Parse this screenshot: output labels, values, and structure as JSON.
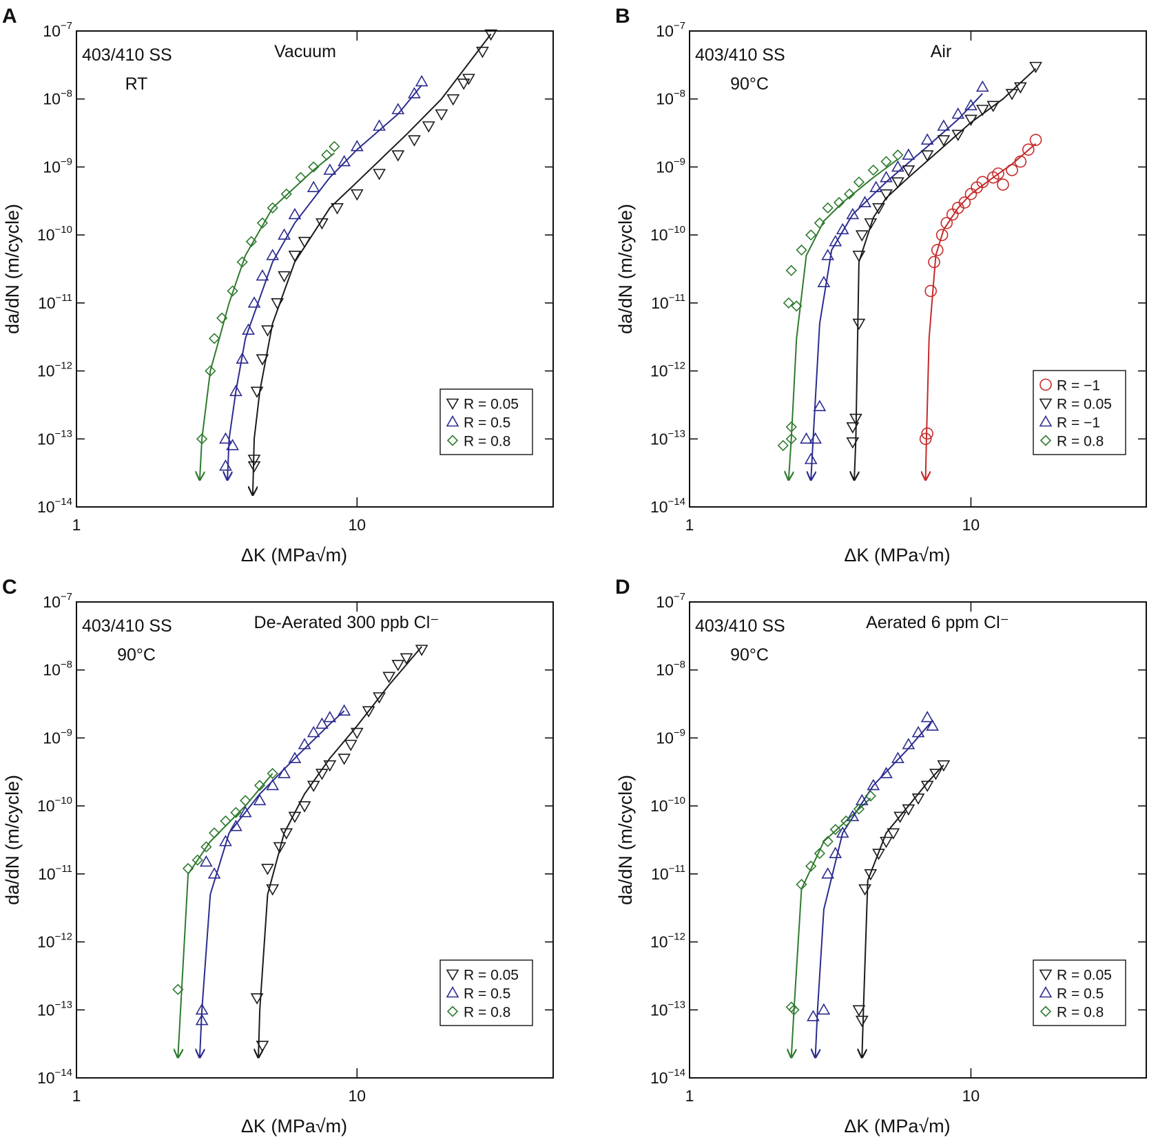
{
  "chart_data": [
    {
      "type": "scatter",
      "label": "A",
      "title": "Vacuum",
      "annotations": [
        "403/410 SS",
        "RT"
      ],
      "xlabel": "ΔK (MPa√m)",
      "ylabel": "da/dN (m/cycle)",
      "xscale": "log",
      "yscale": "log",
      "xlim": [
        1,
        50
      ],
      "xticks": [
        1,
        10
      ],
      "ylim": [
        1e-14,
        1e-07
      ],
      "yticks": [
        {
          "value": 1e-14,
          "label": "10−14"
        },
        {
          "value": 1e-13,
          "label": "10−13"
        },
        {
          "value": 1e-12,
          "label": "10−12"
        },
        {
          "value": 1e-11,
          "label": "10−11"
        },
        {
          "value": 1e-10,
          "label": "10−10"
        },
        {
          "value": 1e-09,
          "label": "10−9"
        },
        {
          "value": 1e-08,
          "label": "10−8"
        },
        {
          "value": 1e-07,
          "label": "10−7"
        }
      ],
      "legend": "lower right",
      "series": [
        {
          "name": "R = 0.05",
          "color": "#1a1a1a",
          "marker": "triangle-down",
          "x": [
            4.3,
            4.3,
            4.4,
            4.6,
            4.8,
            5.2,
            5.5,
            6,
            6.5,
            7.5,
            8.5,
            10,
            12,
            14,
            16,
            18,
            20,
            22,
            24,
            25,
            28,
            30
          ],
          "values": [
            4e-14,
            5e-14,
            5e-13,
            1.5e-12,
            4e-12,
            1e-11,
            2.5e-11,
            5e-11,
            8e-11,
            1.5e-10,
            2.5e-10,
            4e-10,
            8e-10,
            1.5e-09,
            2.5e-09,
            4e-09,
            6e-09,
            1e-08,
            1.7e-08,
            2e-08,
            5e-08,
            9e-08
          ]
        },
        {
          "name": "R = 0.5",
          "color": "#2b2b8f",
          "marker": "triangle-up",
          "x": [
            3.4,
            3.4,
            3.6,
            3.7,
            3.9,
            4.1,
            4.3,
            4.6,
            5,
            5.5,
            6,
            7,
            8,
            9,
            10,
            12,
            14,
            16,
            17
          ],
          "values": [
            1e-13,
            4e-14,
            8e-14,
            5e-13,
            1.5e-12,
            4e-12,
            1e-11,
            2.5e-11,
            5e-11,
            1e-10,
            2e-10,
            5e-10,
            9e-10,
            1.2e-09,
            2e-09,
            4e-09,
            7e-09,
            1.2e-08,
            1.8e-08
          ]
        },
        {
          "name": "R = 0.8",
          "color": "#2e7a2e",
          "marker": "diamond",
          "x": [
            2.8,
            3.0,
            3.1,
            3.3,
            3.6,
            3.9,
            4.2,
            4.6,
            5,
            5.6,
            6.3,
            7,
            7.8,
            8.3
          ],
          "values": [
            1e-13,
            1e-12,
            3e-12,
            6e-12,
            1.5e-11,
            4e-11,
            8e-11,
            1.5e-10,
            2.5e-10,
            4e-10,
            7e-10,
            1e-09,
            1.5e-09,
            2e-09
          ]
        }
      ],
      "fits": [
        {
          "color": "#1a1a1a",
          "x": [
            4.25,
            4.3,
            4.5,
            5,
            6,
            8,
            10,
            15,
            20,
            30
          ],
          "values": [
            1.5e-14,
            1e-13,
            5e-13,
            5e-12,
            4e-11,
            2.5e-10,
            6e-10,
            3e-09,
            1e-08,
            9e-08
          ]
        },
        {
          "color": "#2b2b8f",
          "x": [
            3.45,
            3.5,
            3.7,
            4,
            5,
            6,
            8,
            10,
            14,
            17
          ],
          "values": [
            2.5e-14,
            1e-13,
            5e-13,
            3e-12,
            4e-11,
            1.5e-10,
            7e-10,
            1.8e-09,
            6e-09,
            1.6e-08
          ]
        },
        {
          "color": "#2e7a2e",
          "x": [
            2.75,
            2.8,
            3,
            3.5,
            4,
            5,
            6,
            7,
            8.3
          ],
          "values": [
            2.5e-14,
            1e-13,
            1e-12,
            1e-11,
            5e-11,
            2.5e-10,
            5e-10,
            9e-10,
            1.6e-09
          ]
        }
      ]
    },
    {
      "type": "scatter",
      "label": "B",
      "title": "Air",
      "annotations": [
        "403/410 SS",
        "90°C"
      ],
      "xlabel": "ΔK (MPa√m)",
      "ylabel": "da/dN (m/cycle)",
      "xscale": "log",
      "yscale": "log",
      "xlim": [
        1,
        42
      ],
      "xticks": [
        1,
        10
      ],
      "ylim": [
        1e-14,
        1e-07
      ],
      "yticks": [
        {
          "value": 1e-14,
          "label": "10−14"
        },
        {
          "value": 1e-13,
          "label": "10−13"
        },
        {
          "value": 1e-12,
          "label": "10−12"
        },
        {
          "value": 1e-11,
          "label": "10−11"
        },
        {
          "value": 1e-10,
          "label": "10−10"
        },
        {
          "value": 1e-09,
          "label": "10−9"
        },
        {
          "value": 1e-08,
          "label": "10−8"
        },
        {
          "value": 1e-07,
          "label": "10−7"
        }
      ],
      "legend": "lower right",
      "series": [
        {
          "name": "R = −1",
          "color": "#c62828",
          "marker": "circle",
          "x": [
            6.9,
            7,
            7.2,
            7.4,
            7.6,
            7.9,
            8.2,
            8.6,
            9,
            9.5,
            10,
            10.5,
            11,
            12,
            12.5,
            13,
            14,
            15,
            16,
            17
          ],
          "values": [
            1e-13,
            1.2e-13,
            1.5e-11,
            4e-11,
            6e-11,
            1e-10,
            1.5e-10,
            2e-10,
            2.5e-10,
            3e-10,
            4e-10,
            5e-10,
            6e-10,
            7e-10,
            8e-10,
            5.5e-10,
            9e-10,
            1.2e-09,
            1.8e-09,
            2.5e-09
          ]
        },
        {
          "name": "R = 0.05",
          "color": "#1a1a1a",
          "marker": "triangle-down",
          "x": [
            3.8,
            3.8,
            3.9,
            4,
            4,
            4.1,
            4.4,
            4.7,
            5,
            5.5,
            6,
            7,
            8,
            9,
            10,
            11,
            12,
            14,
            15,
            17
          ],
          "values": [
            9e-14,
            1.5e-13,
            2e-13,
            5e-12,
            5e-11,
            1e-10,
            1.5e-10,
            2.5e-10,
            4e-10,
            6e-10,
            9e-10,
            1.5e-09,
            2.5e-09,
            3e-09,
            5e-09,
            7e-09,
            8e-09,
            1.2e-08,
            1.5e-08,
            3e-08
          ]
        },
        {
          "name": "R = −1",
          "color": "#2b2b8f",
          "marker": "triangle-up",
          "x": [
            2.6,
            2.7,
            2.8,
            2.9,
            3.0,
            3.1,
            3.3,
            3.5,
            3.8,
            4.2,
            4.6,
            5,
            5.5,
            6,
            7,
            8,
            9,
            10,
            11
          ],
          "values": [
            1e-13,
            5e-14,
            1e-13,
            3e-13,
            2e-11,
            5e-11,
            8e-11,
            1.2e-10,
            2e-10,
            3e-10,
            5e-10,
            7e-10,
            1e-09,
            1.5e-09,
            2.5e-09,
            4e-09,
            6e-09,
            8e-09,
            1.5e-08
          ]
        },
        {
          "name": "R = 0.8",
          "color": "#2e7a2e",
          "marker": "diamond",
          "x": [
            2.15,
            2.3,
            2.3,
            2.25,
            2.4,
            2.3,
            2.5,
            2.7,
            2.9,
            3.1,
            3.4,
            3.7,
            4,
            4.5,
            5,
            5.5
          ],
          "values": [
            8e-14,
            1e-13,
            1.5e-13,
            1e-11,
            9e-12,
            3e-11,
            6e-11,
            1e-10,
            1.5e-10,
            2.5e-10,
            3e-10,
            4e-10,
            6e-10,
            9e-10,
            1.2e-09,
            1.5e-09
          ]
        }
      ],
      "fits": [
        {
          "color": "#c62828",
          "x": [
            6.9,
            6.95,
            7.1,
            7.5,
            8,
            9,
            10,
            12,
            14,
            17
          ],
          "values": [
            2.5e-14,
            1e-13,
            3e-12,
            5e-11,
            1.2e-10,
            2.5e-10,
            4e-10,
            7e-10,
            1.1e-09,
            2.2e-09
          ]
        },
        {
          "color": "#1a1a1a",
          "x": [
            3.85,
            3.9,
            4,
            4.5,
            5,
            6,
            8,
            10,
            13,
            17
          ],
          "values": [
            2.5e-14,
            1e-13,
            4e-11,
            1.8e-10,
            3.5e-10,
            7e-10,
            2e-09,
            4.5e-09,
            1e-08,
            2.8e-08
          ]
        },
        {
          "color": "#2b2b8f",
          "x": [
            2.7,
            2.75,
            2.9,
            3.2,
            3.8,
            5,
            7,
            9,
            11
          ],
          "values": [
            2.5e-14,
            1e-13,
            5e-12,
            6e-11,
            2e-10,
            6e-10,
            2e-09,
            5e-09,
            1.2e-08
          ]
        },
        {
          "color": "#2e7a2e",
          "x": [
            2.25,
            2.3,
            2.4,
            2.6,
            3,
            3.5,
            4.5,
            5.5
          ],
          "values": [
            2.5e-14,
            1e-13,
            3e-12,
            5e-11,
            1.6e-10,
            3e-10,
            7e-10,
            1.3e-09
          ]
        }
      ]
    },
    {
      "type": "scatter",
      "label": "C",
      "title": "De-Aerated 300 ppb Cl⁻",
      "annotations": [
        "403/410 SS",
        "90°C"
      ],
      "xlabel": "ΔK (MPa√m)",
      "ylabel": "da/dN (m/cycle)",
      "xscale": "log",
      "yscale": "log",
      "xlim": [
        1,
        50
      ],
      "xticks": [
        1,
        10
      ],
      "ylim": [
        1e-14,
        1e-07
      ],
      "yticks": [
        {
          "value": 1e-14,
          "label": "10−14"
        },
        {
          "value": 1e-13,
          "label": "10−13"
        },
        {
          "value": 1e-12,
          "label": "10−12"
        },
        {
          "value": 1e-11,
          "label": "10−11"
        },
        {
          "value": 1e-10,
          "label": "10−10"
        },
        {
          "value": 1e-09,
          "label": "10−9"
        },
        {
          "value": 1e-08,
          "label": "10−8"
        },
        {
          "value": 1e-07,
          "label": "10−7"
        }
      ],
      "legend": "lower right",
      "series": [
        {
          "name": "R = 0.05",
          "color": "#1a1a1a",
          "marker": "triangle-down",
          "x": [
            4.4,
            4.6,
            4.8,
            5,
            5.3,
            5.6,
            6,
            6.5,
            7,
            7.5,
            8,
            9,
            9.5,
            10,
            11,
            12,
            13,
            14,
            15,
            17
          ],
          "values": [
            1.5e-13,
            3e-14,
            1.2e-11,
            6e-12,
            2.5e-11,
            4e-11,
            7e-11,
            1e-10,
            2e-10,
            3e-10,
            4e-10,
            5e-10,
            8e-10,
            1.2e-09,
            2.5e-09,
            4e-09,
            8e-09,
            1.2e-08,
            1.5e-08,
            2e-08
          ]
        },
        {
          "name": "R = 0.5",
          "color": "#2b2b8f",
          "marker": "triangle-up",
          "x": [
            2.8,
            2.8,
            2.9,
            3.1,
            3.4,
            3.7,
            4,
            4.5,
            5,
            5.5,
            6,
            6.5,
            7,
            7.5,
            8,
            9
          ],
          "values": [
            1e-13,
            7e-14,
            1.5e-11,
            1e-11,
            3e-11,
            5e-11,
            8e-11,
            1.2e-10,
            2e-10,
            3e-10,
            5e-10,
            8e-10,
            1.2e-09,
            1.6e-09,
            2e-09,
            2.5e-09
          ]
        },
        {
          "name": "R = 0.8",
          "color": "#2e7a2e",
          "marker": "diamond",
          "x": [
            2.3,
            2.5,
            2.7,
            2.9,
            3.1,
            3.4,
            3.7,
            4,
            4.5,
            5
          ],
          "values": [
            2e-13,
            1.2e-11,
            1.6e-11,
            2.5e-11,
            4e-11,
            6e-11,
            8e-11,
            1.2e-10,
            2e-10,
            3e-10
          ]
        }
      ],
      "fits": [
        {
          "color": "#1a1a1a",
          "x": [
            4.45,
            4.5,
            4.8,
            5.5,
            6.5,
            8,
            10,
            13,
            17
          ],
          "values": [
            2e-14,
            1e-13,
            5e-12,
            4e-11,
            1.5e-10,
            5e-10,
            1.5e-09,
            6e-09,
            2.2e-08
          ]
        },
        {
          "color": "#2b2b8f",
          "x": [
            2.75,
            2.8,
            3,
            3.5,
            4.5,
            6,
            8,
            9
          ],
          "values": [
            2e-14,
            1e-13,
            5e-12,
            4e-11,
            1.5e-10,
            5e-10,
            1.6e-09,
            2.5e-09
          ]
        },
        {
          "color": "#2e7a2e",
          "x": [
            2.3,
            2.35,
            2.5,
            3,
            4,
            5
          ],
          "values": [
            2e-14,
            1e-13,
            1e-11,
            3e-11,
            1e-10,
            3e-10
          ]
        }
      ]
    },
    {
      "type": "scatter",
      "label": "D",
      "title": "Aerated 6 ppm Cl⁻",
      "annotations": [
        "403/410 SS",
        "90°C"
      ],
      "xlabel": "ΔK (MPa√m)",
      "ylabel": "da/dN (m/cycle)",
      "xscale": "log",
      "yscale": "log",
      "xlim": [
        1,
        42
      ],
      "xticks": [
        1,
        10
      ],
      "ylim": [
        1e-14,
        1e-07
      ],
      "yticks": [
        {
          "value": 1e-14,
          "label": "10−14"
        },
        {
          "value": 1e-13,
          "label": "10−13"
        },
        {
          "value": 1e-12,
          "label": "10−12"
        },
        {
          "value": 1e-11,
          "label": "10−11"
        },
        {
          "value": 1e-10,
          "label": "10−10"
        },
        {
          "value": 1e-09,
          "label": "10−9"
        },
        {
          "value": 1e-08,
          "label": "10−8"
        },
        {
          "value": 1e-07,
          "label": "10−7"
        }
      ],
      "legend": "lower right",
      "series": [
        {
          "name": "R = 0.05",
          "color": "#1a1a1a",
          "marker": "triangle-down",
          "x": [
            4,
            4.1,
            4.2,
            4.4,
            4.7,
            5,
            5.3,
            5.6,
            6,
            6.5,
            7,
            7.5,
            8
          ],
          "values": [
            1e-13,
            7e-14,
            6e-12,
            1e-11,
            2e-11,
            3e-11,
            4e-11,
            7e-11,
            9e-11,
            1.3e-10,
            2e-10,
            3e-10,
            4e-10
          ]
        },
        {
          "name": "R = 0.5",
          "color": "#2b2b8f",
          "marker": "triangle-up",
          "x": [
            2.75,
            3,
            3.1,
            3.3,
            3.5,
            3.8,
            4.1,
            4.5,
            5,
            5.5,
            6,
            6.5,
            7,
            7.3
          ],
          "values": [
            8e-14,
            1e-13,
            1e-11,
            2e-11,
            4e-11,
            7e-11,
            1.2e-10,
            2e-10,
            3e-10,
            5e-10,
            8e-10,
            1.2e-09,
            2e-09,
            1.5e-09
          ]
        },
        {
          "name": "R = 0.8",
          "color": "#2e7a2e",
          "marker": "diamond",
          "x": [
            2.3,
            2.35,
            2.5,
            2.7,
            2.9,
            3.1,
            3.3,
            3.6,
            4,
            4.4
          ],
          "values": [
            1.1e-13,
            1e-13,
            7e-12,
            1.3e-11,
            2e-11,
            3e-11,
            4.5e-11,
            6e-11,
            9e-11,
            1.4e-10
          ]
        }
      ],
      "fits": [
        {
          "color": "#1a1a1a",
          "x": [
            4.1,
            4.15,
            4.3,
            5,
            6,
            7,
            8
          ],
          "values": [
            2e-14,
            1e-13,
            8e-12,
            4e-11,
            1e-10,
            2.2e-10,
            4e-10
          ]
        },
        {
          "color": "#2b2b8f",
          "x": [
            2.8,
            2.85,
            3,
            3.5,
            4.5,
            6,
            7.3
          ],
          "values": [
            2e-14,
            1e-13,
            3e-12,
            4e-11,
            2e-10,
            7e-10,
            1.8e-09
          ]
        },
        {
          "color": "#2e7a2e",
          "x": [
            2.3,
            2.35,
            2.5,
            3,
            4,
            4.4
          ],
          "values": [
            2e-14,
            1e-13,
            6e-12,
            3e-11,
            9e-11,
            1.3e-10
          ]
        }
      ]
    }
  ]
}
